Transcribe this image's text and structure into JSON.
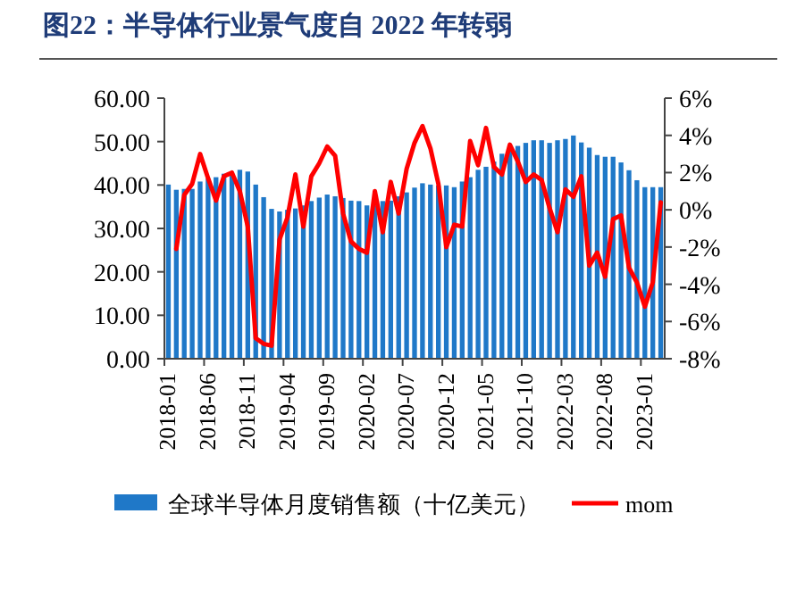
{
  "chart_data": {
    "type": "bar",
    "title": "图22：半导体行业景气度自 2022 年转弱",
    "categories": [
      "2018-01",
      null,
      null,
      null,
      null,
      "2018-06",
      null,
      null,
      null,
      null,
      "2018-11",
      null,
      null,
      null,
      null,
      "2019-04",
      null,
      null,
      null,
      null,
      "2019-09",
      null,
      null,
      null,
      null,
      "2020-02",
      null,
      null,
      null,
      null,
      "2020-07",
      null,
      null,
      null,
      null,
      "2020-12",
      null,
      null,
      null,
      null,
      "2021-05",
      null,
      null,
      null,
      null,
      "2021-10",
      null,
      null,
      null,
      null,
      "2022-03",
      null,
      null,
      null,
      null,
      "2022-08",
      null,
      null,
      null,
      null,
      "2023-01",
      null,
      null
    ],
    "series": [
      {
        "name": "全球半导体月度销售额（十亿美元）",
        "color": "#1f78c8",
        "values": [
          40.1,
          38.9,
          39.1,
          39.1,
          40.8,
          41.5,
          41.8,
          42.6,
          42.6,
          43.5,
          43.1,
          40.1,
          37.2,
          34.5,
          33.9,
          34.3,
          34.6,
          35.3,
          36.3,
          37.1,
          37.8,
          37.4,
          37.0,
          36.4,
          36.3,
          35.3,
          35.3,
          36.3,
          36.4,
          37.4,
          38.3,
          39.4,
          40.4,
          40.1,
          39.9,
          39.9,
          39.5,
          40.8,
          41.8,
          43.5,
          44.2,
          45.4,
          47.2,
          48.6,
          49.0,
          49.7,
          50.3,
          50.3,
          49.7,
          50.3,
          50.6,
          51.4,
          49.8,
          48.6,
          46.9,
          46.5,
          46.5,
          45.2,
          43.4,
          41.1,
          39.5,
          39.5,
          39.5
        ]
      },
      {
        "name": "mom",
        "type": "line",
        "axis": "y2",
        "color": "#ff0000",
        "values": [
          null,
          -2.1,
          0.8,
          1.4,
          3.0,
          1.7,
          0.5,
          1.8,
          2.0,
          1.0,
          -0.9,
          -6.9,
          -7.2,
          -7.3,
          -1.6,
          -0.4,
          1.9,
          -0.9,
          1.8,
          2.5,
          3.4,
          2.9,
          -0.2,
          -1.7,
          -2.1,
          -2.3,
          1.0,
          -1.2,
          1.5,
          -0.2,
          2.2,
          3.6,
          4.5,
          3.3,
          1.4,
          -2.0,
          -0.8,
          -0.9,
          3.7,
          2.4,
          4.4,
          2.3,
          1.9,
          3.5,
          2.6,
          1.5,
          1.9,
          1.6,
          0.1,
          -1.2,
          1.1,
          0.7,
          1.8,
          -3.0,
          -2.3,
          -3.6,
          -0.5,
          -0.3,
          -3.1,
          -3.9,
          -5.2,
          -3.9,
          0.4
        ]
      }
    ],
    "ylim": [
      0,
      60
    ],
    "yticks": [
      {
        "value": 0,
        "label": "0.00"
      },
      {
        "value": 10,
        "label": "10.00"
      },
      {
        "value": 20,
        "label": "20.00"
      },
      {
        "value": 30,
        "label": "30.00"
      },
      {
        "value": 40,
        "label": "40.00"
      },
      {
        "value": 50,
        "label": "50.00"
      },
      {
        "value": 60,
        "label": "60.00"
      }
    ],
    "y2lim": [
      -8,
      6
    ],
    "y2ticks": [
      {
        "value": -8,
        "label": "-8%"
      },
      {
        "value": -6,
        "label": "-6%"
      },
      {
        "value": -4,
        "label": "-4%"
      },
      {
        "value": -2,
        "label": "-2%"
      },
      {
        "value": 0,
        "label": "0%"
      },
      {
        "value": 2,
        "label": "2%"
      },
      {
        "value": 4,
        "label": "4%"
      },
      {
        "value": 6,
        "label": "6%"
      }
    ],
    "grid": false,
    "legend": "bottom"
  }
}
